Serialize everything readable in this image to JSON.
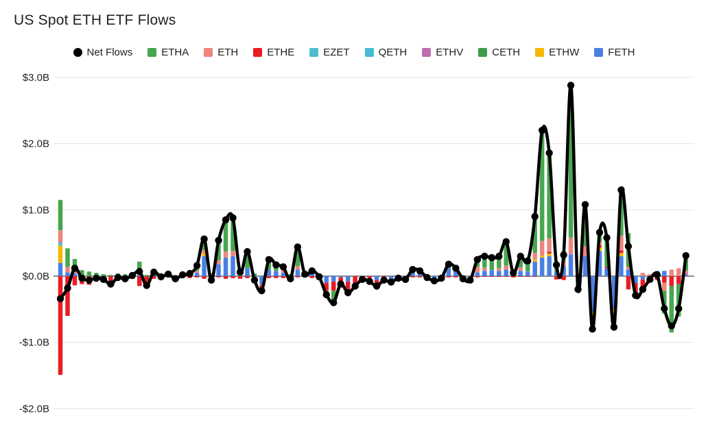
{
  "title": "US Spot ETH ETF Flows",
  "legend": {
    "items": [
      {
        "label": "Net Flows",
        "marker": "circle",
        "color": "#000000"
      },
      {
        "label": "ETHA",
        "marker": "square",
        "color": "#47a64e"
      },
      {
        "label": "ETH",
        "marker": "square",
        "color": "#ee867d"
      },
      {
        "label": "ETHE",
        "marker": "square",
        "color": "#e91d24"
      },
      {
        "label": "EZET",
        "marker": "square",
        "color": "#4fbccd"
      },
      {
        "label": "QETH",
        "marker": "square",
        "color": "#46bdd3"
      },
      {
        "label": "ETHV",
        "marker": "square",
        "color": "#bb6fae"
      },
      {
        "label": "CETH",
        "marker": "square",
        "color": "#3e9c49"
      },
      {
        "label": "ETHW",
        "marker": "square",
        "color": "#f5b800"
      },
      {
        "label": "FETH",
        "marker": "square",
        "color": "#4a80e4"
      }
    ]
  },
  "y_axis": {
    "ticks": [
      {
        "label": "$3.0B",
        "value": 3
      },
      {
        "label": "$2.0B",
        "value": 2
      },
      {
        "label": "$1.0B",
        "value": 1
      },
      {
        "label": "$0.0B",
        "value": 0
      },
      {
        "label": "-$1.0B",
        "value": -1
      },
      {
        "label": "-$2.0B",
        "value": -2
      }
    ],
    "grid_color": "#e3e3e3",
    "zero_line_color": "#5f6368",
    "label_color": "#1f1f1f"
  },
  "chart_data": {
    "type": "bar",
    "subtype": "stacked-bars-with-line-overlay",
    "title": "US Spot ETH ETF Flows",
    "xlabel": "",
    "ylabel": "",
    "ylim": [
      -2.0,
      3.0
    ],
    "grid": "horizontal",
    "legend_position": "top",
    "units": "billions USD",
    "line_series": {
      "name": "Net Flows",
      "color": "#000000"
    },
    "stack_order": [
      "FETH",
      "ETHW",
      "QETH",
      "EZET",
      "ETHV",
      "CETH",
      "ETHE",
      "ETH",
      "ETHA"
    ],
    "series_colors": {
      "ETHA": "#47a64e",
      "ETH": "#ee867d",
      "ETHE": "#e91d24",
      "EZET": "#4fbccd",
      "QETH": "#46bdd3",
      "ETHV": "#bb6fae",
      "CETH": "#3e9c49",
      "ETHW": "#f5b800",
      "FETH": "#4a80e4"
    },
    "bars": [
      {
        "net": -0.34,
        "segments": {
          "FETH": 0.2,
          "ETHW": 0.26,
          "QETH": 0.02,
          "EZET": 0.02,
          "ETHV": 0.02,
          "ETH": 0.17,
          "ETHA": 0.46,
          "ETHE": -1.49
        }
      },
      {
        "net": -0.18,
        "segments": {
          "FETH": 0.06,
          "ETH": 0.08,
          "ETHA": 0.28,
          "ETHE": -0.6
        }
      },
      {
        "net": 0.12,
        "segments": {
          "FETH": 0.04,
          "ETH": 0.05,
          "ETHA": 0.17,
          "ETHE": -0.14
        }
      },
      {
        "net": -0.03,
        "segments": {
          "ETHA": 0.09,
          "ETHE": -0.12
        }
      },
      {
        "net": -0.06,
        "segments": {
          "ETHA": 0.07,
          "ETHE": -0.13
        }
      },
      {
        "net": -0.03,
        "segments": {
          "ETHA": 0.05,
          "ETHE": -0.08
        }
      },
      {
        "net": -0.05,
        "segments": {
          "ETHA": 0.03,
          "ETHE": -0.08
        }
      },
      {
        "net": -0.12,
        "segments": {
          "ETHA": 0.02,
          "ETHE": -0.14
        }
      },
      {
        "net": -0.02,
        "segments": {
          "ETHA": 0.04,
          "ETHE": -0.06
        }
      },
      {
        "net": -0.04,
        "segments": {
          "ETHA": 0.03,
          "ETHE": -0.07
        }
      },
      {
        "net": 0.01,
        "segments": {
          "ETHA": 0.05,
          "ETHE": -0.04
        }
      },
      {
        "net": 0.07,
        "segments": {
          "FETH": 0.02,
          "ETHA": 0.2,
          "ETHE": -0.15
        }
      },
      {
        "net": -0.14,
        "segments": {
          "ETHA": 0.02,
          "ETHE": -0.16
        }
      },
      {
        "net": 0.06,
        "segments": {
          "FETH": 0.02,
          "ETHA": 0.08,
          "ETHE": -0.04
        }
      },
      {
        "net": -0.01,
        "segments": {
          "ETHA": 0.03,
          "ETHE": -0.04
        }
      },
      {
        "net": 0.03,
        "segments": {
          "ETHA": 0.04,
          "ETHE": -0.01
        }
      },
      {
        "net": -0.04,
        "segments": {
          "ETH": 0.02,
          "ETHE": -0.06
        }
      },
      {
        "net": 0.02,
        "segments": {
          "ETHA": 0.03,
          "ETHE": -0.01
        }
      },
      {
        "net": 0.04,
        "segments": {
          "FETH": 0.02,
          "ETHA": 0.05,
          "ETHE": -0.03
        }
      },
      {
        "net": 0.16,
        "segments": {
          "FETH": 0.05,
          "ETH": 0.03,
          "ETHA": 0.1,
          "ETHE": -0.02
        }
      },
      {
        "net": 0.56,
        "segments": {
          "FETH": 0.3,
          "ETHW": 0.04,
          "ETH": 0.06,
          "ETHA": 0.2,
          "ETHE": -0.04
        }
      },
      {
        "net": -0.06,
        "segments": {
          "ETHA": 0.04,
          "ETHE": -0.08,
          "FETH": -0.02
        }
      },
      {
        "net": 0.54,
        "segments": {
          "FETH": 0.18,
          "ETH": 0.06,
          "ETHA": 0.32,
          "ETHE": -0.02
        }
      },
      {
        "net": 0.85,
        "segments": {
          "FETH": 0.28,
          "ETH": 0.09,
          "ETHA": 0.52,
          "ETHE": -0.04
        }
      },
      {
        "net": 0.88,
        "segments": {
          "FETH": 0.3,
          "ETH": 0.08,
          "ETHA": 0.53,
          "ETHE": -0.03
        }
      },
      {
        "net": 0.06,
        "segments": {
          "ETHA": 0.1,
          "ETHE": -0.04
        }
      },
      {
        "net": 0.37,
        "segments": {
          "FETH": 0.12,
          "ETHA": 0.28,
          "ETHE": -0.03
        }
      },
      {
        "net": -0.06,
        "segments": {
          "ETHA": 0.04,
          "ETHE": -0.06,
          "FETH": -0.04
        }
      },
      {
        "net": -0.22,
        "segments": {
          "FETH": -0.12,
          "ETHE": -0.06,
          "ETHV": -0.02,
          "ETHA": -0.02
        }
      },
      {
        "net": 0.25,
        "segments": {
          "FETH": 0.1,
          "ETHA": 0.18,
          "ETHE": -0.03
        }
      },
      {
        "net": 0.17,
        "segments": {
          "FETH": 0.08,
          "ETHA": 0.12,
          "ETHE": -0.03
        }
      },
      {
        "net": 0.14,
        "segments": {
          "FETH": 0.05,
          "ETH": 0.04,
          "ETHA": 0.08,
          "ETHE": -0.03
        }
      },
      {
        "net": -0.04,
        "segments": {
          "ETHA": 0.03,
          "ETHE": -0.07
        }
      },
      {
        "net": 0.44,
        "segments": {
          "FETH": 0.1,
          "ETH": 0.05,
          "ETHA": 0.31,
          "ETHE": -0.02
        }
      },
      {
        "net": 0.03,
        "segments": {
          "ETHA": 0.05,
          "ETHE": -0.02
        }
      },
      {
        "net": 0.08,
        "segments": {
          "FETH": 0.04,
          "ETHA": 0.07,
          "ETHE": -0.03
        }
      },
      {
        "net": -0.01,
        "segments": {
          "ETHA": 0.02,
          "ETHE": -0.03
        }
      },
      {
        "net": -0.28,
        "segments": {
          "FETH": -0.1,
          "ETHE": -0.12,
          "ETHA": -0.06
        }
      },
      {
        "net": -0.4,
        "segments": {
          "FETH": -0.08,
          "ETHE": -0.14,
          "ETHA": -0.18
        }
      },
      {
        "net": -0.12,
        "segments": {
          "FETH": -0.02,
          "ETHE": -0.1
        }
      },
      {
        "net": -0.25,
        "segments": {
          "FETH": -0.08,
          "ETHE": -0.13,
          "ETHA": -0.04
        }
      },
      {
        "net": -0.15,
        "segments": {
          "ETH": -0.04,
          "ETHE": -0.11
        }
      },
      {
        "net": -0.05,
        "segments": {
          "ETHE": -0.05
        }
      },
      {
        "net": -0.08,
        "segments": {
          "ETH": -0.05,
          "ETHE": -0.03
        }
      },
      {
        "net": -0.15,
        "segments": {
          "FETH": -0.06,
          "ETHE": -0.09
        }
      },
      {
        "net": -0.06,
        "segments": {
          "ETHE": -0.06
        }
      },
      {
        "net": -0.09,
        "segments": {
          "FETH": -0.09
        }
      },
      {
        "net": -0.03,
        "segments": {
          "ETHE": -0.03
        }
      },
      {
        "net": -0.05,
        "segments": {
          "ETHE": -0.05
        }
      },
      {
        "net": 0.1,
        "segments": {
          "FETH": 0.06,
          "ETHA": 0.06,
          "ETHE": -0.02
        }
      },
      {
        "net": 0.08,
        "segments": {
          "FETH": 0.05,
          "ETHA": 0.05,
          "ETHE": -0.02
        }
      },
      {
        "net": -0.02,
        "segments": {
          "ETHE": -0.02
        }
      },
      {
        "net": -0.07,
        "segments": {
          "FETH": -0.04,
          "ETHE": -0.03
        }
      },
      {
        "net": -0.03,
        "segments": {
          "ETHE": -0.03
        }
      },
      {
        "net": 0.18,
        "segments": {
          "FETH": 0.12,
          "ETHA": 0.08,
          "ETHE": -0.02
        }
      },
      {
        "net": 0.12,
        "segments": {
          "FETH": 0.08,
          "ETHA": 0.06,
          "ETHE": -0.02
        }
      },
      {
        "net": -0.04,
        "segments": {
          "ETHE": -0.04
        }
      },
      {
        "net": -0.06,
        "segments": {
          "FETH": -0.03,
          "ETHE": -0.03
        }
      },
      {
        "net": 0.25,
        "segments": {
          "FETH": 0.06,
          "ETH": 0.08,
          "ETHA": 0.13,
          "ETHE": -0.02
        }
      },
      {
        "net": 0.3,
        "segments": {
          "FETH": 0.08,
          "ETH": 0.05,
          "ETHA": 0.18,
          "ETHE": -0.01
        }
      },
      {
        "net": 0.28,
        "segments": {
          "FETH": 0.09,
          "ETHA": 0.2,
          "ETHE": -0.01
        }
      },
      {
        "net": 0.3,
        "segments": {
          "FETH": 0.08,
          "ETH": 0.04,
          "ETHA": 0.19,
          "ETHE": -0.01
        }
      },
      {
        "net": 0.52,
        "segments": {
          "FETH": 0.1,
          "ETH": 0.06,
          "ETHA": 0.37,
          "ETHE": -0.01
        }
      },
      {
        "net": 0.05,
        "segments": {
          "ETHA": 0.07,
          "ETHE": -0.02
        }
      },
      {
        "net": 0.3,
        "segments": {
          "FETH": 0.08,
          "ETH": 0.05,
          "ETHA": 0.18,
          "ETHE": -0.01
        }
      },
      {
        "net": 0.23,
        "segments": {
          "FETH": 0.07,
          "ETHA": 0.17,
          "ETHE": -0.01
        }
      },
      {
        "net": 0.9,
        "segments": {
          "FETH": 0.22,
          "ETHW": 0.03,
          "ETH": 0.1,
          "ETHA": 0.56,
          "ETHE": -0.01
        }
      },
      {
        "net": 2.2,
        "segments": {
          "FETH": 0.28,
          "ETHW": 0.03,
          "ETH": 0.22,
          "ETHA": 1.67
        }
      },
      {
        "net": 1.86,
        "segments": {
          "FETH": 0.3,
          "ETHW": 0.04,
          "ETHE": 0.03,
          "ETH": 0.2,
          "ETHA": 1.29
        }
      },
      {
        "net": 0.17,
        "segments": {
          "FETH": 0.08,
          "ETHA": 0.14,
          "ETHE": -0.05
        }
      },
      {
        "net": 0.32,
        "segments": {
          "FETH": 0.15,
          "ETH": 0.08,
          "ETHA": 0.15,
          "ETHE": -0.06
        }
      },
      {
        "net": 2.88,
        "segments": {
          "FETH": 0.33,
          "ETH": 0.25,
          "ETHA": 2.3
        }
      },
      {
        "net": -0.2,
        "segments": {
          "ETHA": 0.02,
          "ETHE": -0.1,
          "FETH": -0.12
        }
      },
      {
        "net": 1.08,
        "segments": {
          "FETH": 0.3,
          "ETH": 0.15,
          "ETHA": 0.63
        }
      },
      {
        "net": -0.8,
        "segments": {
          "FETH": -0.54,
          "ETHW": -0.05,
          "ETHE": -0.08,
          "ETHA": -0.13
        }
      },
      {
        "net": 0.66,
        "segments": {
          "FETH": 0.38,
          "ETHW": 0.05,
          "ETHE": 0.03,
          "ETH": 0.05,
          "ETHA": 0.15
        }
      },
      {
        "net": 0.58,
        "segments": {
          "FETH": 0.12,
          "ETHE": 0.02,
          "ETHA": 0.44
        }
      },
      {
        "net": -0.77,
        "segments": {
          "FETH": -0.5,
          "ETHW": -0.06,
          "ETHE": -0.05,
          "ETHA": -0.16
        }
      },
      {
        "net": 1.3,
        "segments": {
          "FETH": 0.3,
          "ETHW": 0.05,
          "ETHE": 0.04,
          "ETH": 0.22,
          "ETHA": 0.69
        }
      },
      {
        "net": 0.45,
        "segments": {
          "FETH": 0.1,
          "ETH": 0.04,
          "ETHA": 0.51,
          "ETHE": -0.2
        }
      },
      {
        "net": -0.29,
        "segments": {
          "FETH": -0.1,
          "ETHE": -0.19
        }
      },
      {
        "net": -0.2,
        "segments": {
          "ETH": 0.05,
          "ETHE": -0.2,
          "FETH": -0.05
        }
      },
      {
        "net": -0.05,
        "segments": {
          "ETH": 0.03,
          "ETHE": -0.08
        }
      },
      {
        "net": 0.02,
        "segments": {
          "FETH": 0.08,
          "ETHE": -0.06
        }
      },
      {
        "net": -0.49,
        "segments": {
          "FETH": 0.08,
          "ETH": -0.12,
          "ETHE": -0.1,
          "ETHA": -0.35
        }
      },
      {
        "net": -0.75,
        "segments": {
          "ETH": 0.1,
          "ETHE": -0.15,
          "ETHA": -0.7
        }
      },
      {
        "net": -0.49,
        "segments": {
          "ETH": 0.12,
          "ETHE": -0.12,
          "ETHA": -0.49
        }
      },
      {
        "net": 0.31,
        "segments": {
          "FETH": 0.02,
          "ETHV": 0.02,
          "ETH": 0.04,
          "ETHA": 0.23
        }
      }
    ]
  }
}
